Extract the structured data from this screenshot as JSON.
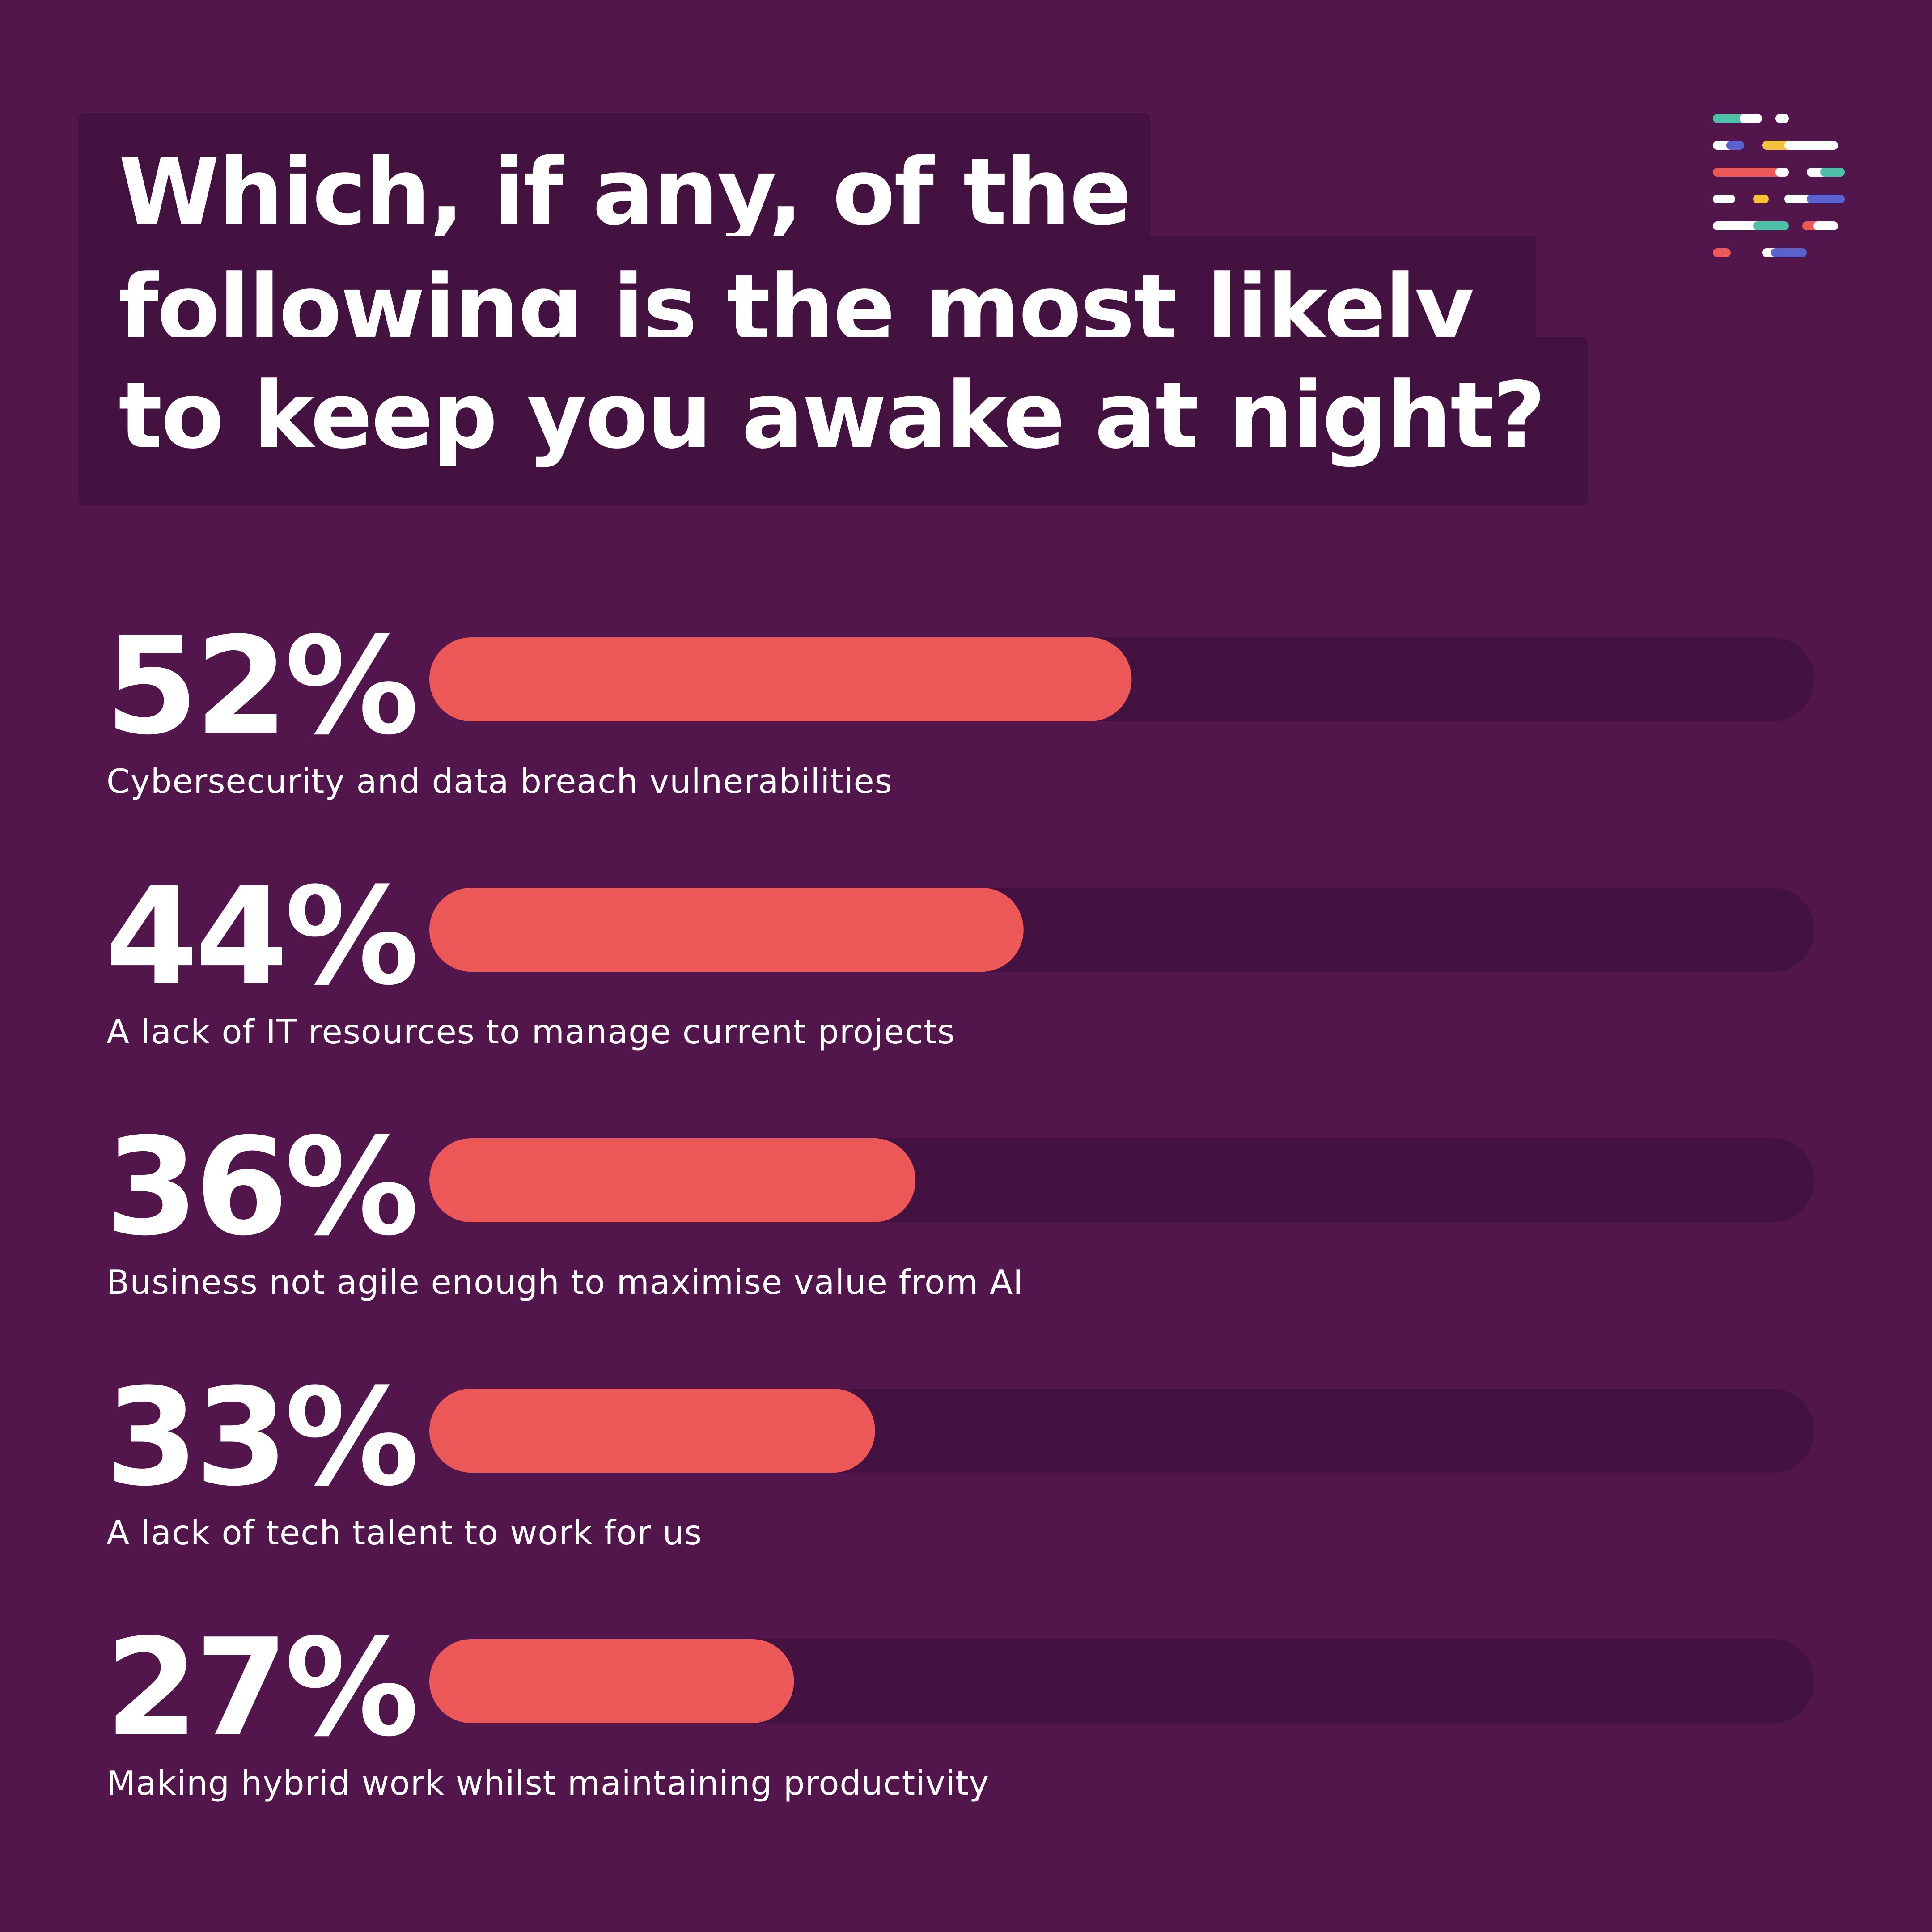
{
  "title_lines": [
    "Which, if any, of the",
    "following is the most likely",
    "to keep you awake at night?"
  ],
  "colors": {
    "background": "#52164c",
    "track": "#431240",
    "bar": "#ec5858",
    "text": "#ffffff"
  },
  "chart_data": {
    "type": "bar",
    "orientation": "horizontal",
    "categories": [
      "Cybersecurity and data breach vulnerabilities",
      "A lack of IT resources to manage current projects",
      "Business not agile enough to maximise value from AI",
      "A lack of tech talent to work for us",
      "Making hybrid work whilst maintaining productivity"
    ],
    "values": [
      52,
      44,
      36,
      33,
      27
    ],
    "value_labels": [
      "52%",
      "44%",
      "36%",
      "33%",
      "27%"
    ],
    "title": "Which, if any, of the following is the most likely to keep you awake at night?",
    "xlim": [
      0,
      100
    ],
    "grid": false
  }
}
